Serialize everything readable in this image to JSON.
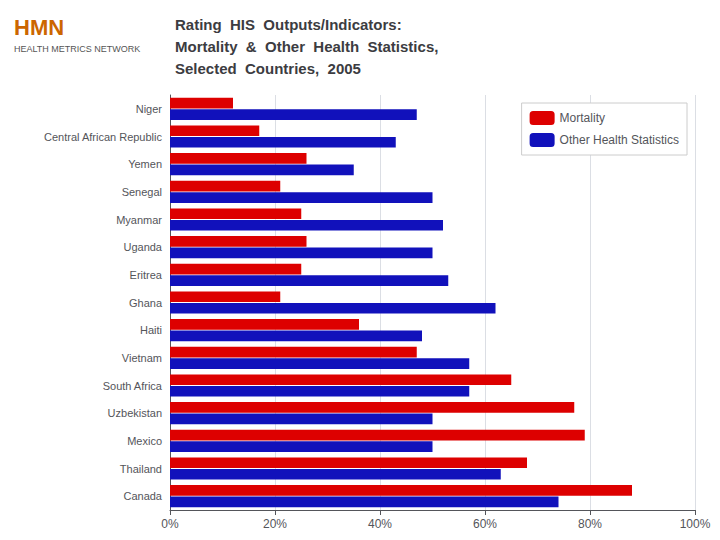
{
  "chart_data": {
    "type": "bar",
    "orientation": "horizontal",
    "title": "Rating  HIS  Outputs/Indicators:\nMortality  &  Other  Health  Statistics,\nSelected  Countries,  2005",
    "annotations": [
      "HMN",
      "HEALTH METRICS NETWORK"
    ],
    "categories": [
      "Niger",
      "Central African Republic",
      "Yemen",
      "Senegal",
      "Myanmar",
      "Uganda",
      "Eritrea",
      "Ghana",
      "Haiti",
      "Vietnam",
      "South Africa",
      "Uzbekistan",
      "Mexico",
      "Thailand",
      "Canada"
    ],
    "series": [
      {
        "name": "Mortality",
        "color": "#dd0000",
        "values": [
          12,
          17,
          26,
          21,
          25,
          26,
          25,
          21,
          36,
          47,
          65,
          77,
          79,
          68,
          88
        ]
      },
      {
        "name": "Other Health Statistics",
        "color": "#1111bb",
        "values": [
          47,
          43,
          35,
          50,
          52,
          50,
          53,
          62,
          48,
          57,
          57,
          50,
          50,
          63,
          74
        ]
      }
    ],
    "xlim": [
      0,
      100
    ],
    "xticks": [
      {
        "value": 0,
        "label": "0%"
      },
      {
        "value": 20,
        "label": "20%"
      },
      {
        "value": 40,
        "label": "40%"
      },
      {
        "value": 60,
        "label": "60%"
      },
      {
        "value": 80,
        "label": "80%"
      },
      {
        "value": 100,
        "label": "100%"
      }
    ],
    "grid": true,
    "legend": "upper right"
  }
}
